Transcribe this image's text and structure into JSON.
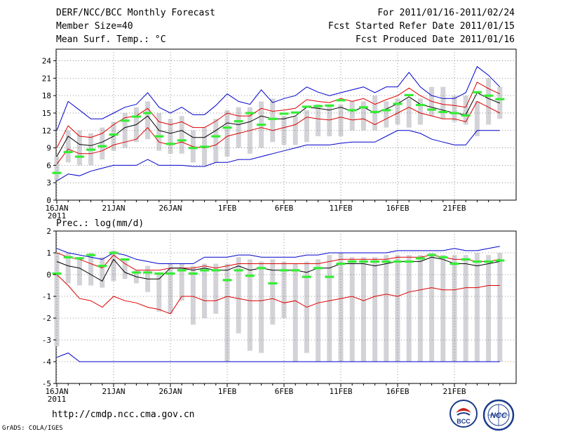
{
  "header": {
    "title": "DERF/NCC/BCC Monthly Forecast",
    "member_size": "Member Size=40",
    "variable": "Mean Surf. Temp.: °C",
    "period": "For 2011/01/16-2011/02/24",
    "start_date": "Fcst Started Refer Date 2011/01/15",
    "produced_date": "Fcst Produced Date 2011/01/16"
  },
  "footer": {
    "url": "http://cmdp.ncc.cma.gov.cn",
    "credit": "GrADS: COLA/IGES"
  },
  "logos": {
    "bcc": "BCC",
    "ncc": "NCC"
  },
  "colors": {
    "box": "#d3d3d7",
    "bar": "#33ee33",
    "mean": "#000000",
    "spread": "#dd0000",
    "envelope": "#0000cc"
  },
  "chart_data": [
    {
      "type": "line",
      "title": "Mean Surf. Temp.: °C",
      "ylim": [
        0,
        26
      ],
      "yticks": [
        0,
        3,
        6,
        9,
        12,
        15,
        18,
        21,
        24
      ],
      "xtick_labels": [
        "16JAN",
        "21JAN",
        "26JAN",
        "1FEB",
        "6FEB",
        "11FEB",
        "16FEB",
        "21FEB"
      ],
      "xtick_sublabel": "2011",
      "days": 40,
      "box_low": [
        3.5,
        6.5,
        6.0,
        6.0,
        7.0,
        8.5,
        9.0,
        10.0,
        10.5,
        8.5,
        8.0,
        8.0,
        6.5,
        6.0,
        6.5,
        7.5,
        9.0,
        8.0,
        9.0,
        10.0,
        9.5,
        9.5,
        10.0,
        11.0,
        11.0,
        11.0,
        12.0,
        12.0,
        12.0,
        12.5,
        13.0,
        12.5,
        13.0,
        14.5,
        14.0,
        13.5,
        13.0,
        11.0,
        13.0,
        14.0
      ],
      "box_high": [
        7.5,
        12.0,
        12.0,
        11.5,
        12.5,
        13.5,
        15.0,
        16.0,
        17.0,
        15.0,
        14.0,
        14.5,
        12.0,
        12.5,
        14.0,
        15.5,
        16.0,
        16.0,
        17.0,
        17.5,
        14.5,
        14.5,
        15.5,
        16.5,
        16.5,
        16.5,
        17.0,
        17.0,
        18.0,
        17.0,
        17.5,
        17.5,
        17.5,
        19.5,
        19.5,
        18.0,
        18.0,
        17.0,
        21.0,
        19.5
      ],
      "member_bar": [
        4.7,
        8.3,
        7.5,
        8.7,
        9.3,
        11.3,
        13.7,
        14.4,
        15.0,
        11.0,
        9.7,
        10.3,
        9.0,
        9.2,
        11.0,
        12.5,
        13.6,
        15.0,
        13.0,
        14.0,
        14.9,
        15.1,
        16.1,
        16.2,
        16.3,
        17.2,
        15.5,
        16.0,
        15.2,
        15.5,
        16.6,
        18.1,
        16.4,
        15.6,
        15.2,
        15.0,
        14.6,
        18.6,
        18.0,
        17.4
      ],
      "series": [
        {
          "name": "max",
          "values": [
            12.0,
            17.0,
            15.5,
            14.0,
            14.0,
            15.0,
            16.0,
            16.5,
            18.5,
            16.0,
            15.0,
            16.0,
            14.7,
            14.7,
            16.3,
            18.3,
            17.0,
            16.5,
            19.0,
            16.8,
            17.5,
            18.0,
            19.5,
            18.6,
            18.0,
            18.5,
            19.0,
            19.5,
            18.5,
            19.5,
            19.5,
            22.0,
            19.5,
            18.0,
            17.5,
            17.5,
            18.5,
            23.0,
            21.5,
            19.5
          ]
        },
        {
          "name": "upper",
          "values": [
            9.0,
            12.8,
            11.0,
            10.8,
            11.5,
            13.0,
            14.2,
            14.5,
            15.8,
            13.5,
            13.0,
            13.5,
            12.5,
            12.5,
            13.6,
            15.0,
            14.5,
            14.5,
            15.8,
            15.3,
            15.5,
            15.8,
            17.3,
            17.0,
            16.8,
            17.5,
            17.0,
            17.5,
            16.5,
            17.3,
            18.0,
            19.3,
            18.0,
            17.0,
            16.5,
            16.3,
            16.0,
            20.3,
            19.2,
            18.3
          ]
        },
        {
          "name": "mean",
          "values": [
            7.5,
            11.0,
            9.6,
            9.4,
            10.0,
            11.0,
            12.5,
            13.0,
            14.5,
            12.0,
            11.5,
            12.0,
            10.8,
            10.8,
            12.0,
            13.3,
            13.0,
            13.5,
            14.5,
            14.0,
            14.0,
            14.5,
            16.0,
            15.8,
            15.5,
            16.0,
            15.3,
            16.0,
            15.0,
            15.7,
            16.6,
            17.8,
            16.5,
            16.0,
            15.5,
            15.0,
            14.7,
            18.5,
            17.5,
            16.7
          ]
        },
        {
          "name": "lower",
          "values": [
            6.2,
            8.8,
            8.0,
            8.0,
            8.5,
            9.5,
            10.0,
            10.5,
            12.5,
            10.0,
            9.5,
            10.0,
            9.2,
            9.0,
            9.5,
            11.0,
            11.5,
            12.0,
            12.5,
            12.0,
            12.5,
            13.0,
            14.3,
            14.0,
            13.8,
            14.3,
            13.8,
            14.0,
            13.0,
            14.0,
            15.0,
            16.0,
            15.0,
            14.5,
            14.0,
            14.0,
            13.5,
            17.0,
            16.0,
            15.0
          ]
        },
        {
          "name": "min",
          "values": [
            3.3,
            4.5,
            4.2,
            5.0,
            5.5,
            6.0,
            6.0,
            6.0,
            7.0,
            6.0,
            6.0,
            6.0,
            5.8,
            5.8,
            6.5,
            6.5,
            7.0,
            7.0,
            7.5,
            8.0,
            8.5,
            9.0,
            9.5,
            9.5,
            9.5,
            9.8,
            10.0,
            10.0,
            10.0,
            11.0,
            12.0,
            12.0,
            11.5,
            10.5,
            10.0,
            9.5,
            9.5,
            12.0,
            12.0,
            12.0
          ]
        }
      ]
    },
    {
      "type": "line",
      "title": "Prec.: log(mm/d)",
      "ylim": [
        -5,
        2
      ],
      "yticks": [
        -5,
        -4,
        -3,
        -2,
        -1,
        0,
        1,
        2
      ],
      "xtick_labels": [
        "16JAN",
        "21JAN",
        "26JAN",
        "1FEB",
        "6FEB",
        "11FEB",
        "16FEB",
        "21FEB"
      ],
      "xtick_sublabel": "2011",
      "days": 40,
      "box_low": [
        -3.3,
        -0.4,
        -0.5,
        -0.5,
        -0.6,
        -0.3,
        -0.2,
        -0.4,
        -0.8,
        -1.7,
        -1.8,
        -1.2,
        -2.3,
        -2.0,
        -1.8,
        -4.0,
        -2.7,
        -3.5,
        -3.6,
        -2.3,
        -2.0,
        -4.0,
        -3.6,
        -4.0,
        -4.0,
        -4.0,
        -4.0,
        -4.0,
        -4.0,
        -4.0,
        -4.0,
        -4.0,
        -4.0,
        -4.0,
        -4.0,
        -4.0,
        -4.0,
        -4.0,
        -4.0,
        -4.0
      ],
      "box_high": [
        1.0,
        1.0,
        0.8,
        1.0,
        0.8,
        1.1,
        0.7,
        0.2,
        0.4,
        0.0,
        0.5,
        0.5,
        0.4,
        0.5,
        0.5,
        0.5,
        0.8,
        0.7,
        0.6,
        0.7,
        0.6,
        0.5,
        0.6,
        0.7,
        0.9,
        1.0,
        0.8,
        0.8,
        0.8,
        0.9,
        0.9,
        0.9,
        0.9,
        1.0,
        0.9,
        0.9,
        0.9,
        1.0,
        0.9,
        1.0
      ],
      "member_bar": [
        0.05,
        0.8,
        0.75,
        0.9,
        0.4,
        1.0,
        0.7,
        0.1,
        0.1,
        0.05,
        0.05,
        0.2,
        0.05,
        0.2,
        0.2,
        -0.25,
        0.2,
        -0.05,
        0.3,
        -0.4,
        0.2,
        0.2,
        -0.1,
        0.3,
        -0.1,
        0.5,
        0.6,
        0.6,
        0.6,
        0.6,
        0.6,
        0.6,
        0.75,
        0.9,
        0.8,
        0.5,
        0.7,
        0.6,
        0.6,
        0.65
      ],
      "series": [
        {
          "name": "max",
          "values": [
            1.2,
            1.0,
            0.9,
            0.8,
            0.7,
            1.0,
            0.9,
            0.7,
            0.6,
            0.5,
            0.5,
            0.5,
            0.5,
            0.8,
            0.8,
            0.8,
            0.9,
            0.9,
            0.8,
            0.8,
            0.8,
            0.8,
            0.9,
            0.9,
            1.0,
            1.0,
            1.0,
            1.0,
            1.0,
            1.0,
            1.1,
            1.1,
            1.1,
            1.1,
            1.1,
            1.2,
            1.1,
            1.1,
            1.2,
            1.3
          ]
        },
        {
          "name": "upper",
          "values": [
            1.0,
            0.8,
            0.7,
            0.5,
            0.3,
            0.9,
            0.5,
            0.2,
            0.2,
            0.2,
            0.3,
            0.3,
            0.3,
            0.4,
            0.3,
            0.4,
            0.5,
            0.5,
            0.5,
            0.5,
            0.5,
            0.5,
            0.5,
            0.5,
            0.6,
            0.7,
            0.7,
            0.7,
            0.7,
            0.7,
            0.8,
            0.8,
            0.8,
            0.9,
            0.8,
            0.7,
            0.7,
            0.6,
            0.6,
            0.7
          ]
        },
        {
          "name": "mean",
          "values": [
            0.6,
            0.4,
            0.3,
            0.0,
            -0.3,
            0.7,
            0.1,
            -0.1,
            -0.2,
            -0.2,
            0.3,
            0.3,
            0.2,
            0.3,
            0.2,
            0.2,
            0.4,
            0.2,
            0.3,
            0.2,
            0.2,
            0.2,
            0.1,
            0.3,
            0.3,
            0.5,
            0.5,
            0.5,
            0.4,
            0.5,
            0.6,
            0.6,
            0.6,
            0.8,
            0.7,
            0.5,
            0.5,
            0.4,
            0.5,
            0.6
          ]
        },
        {
          "name": "lower",
          "values": [
            0.0,
            -0.5,
            -1.1,
            -1.2,
            -1.5,
            -1.0,
            -1.2,
            -1.3,
            -1.5,
            -1.6,
            -1.8,
            -1.0,
            -1.0,
            -1.2,
            -1.2,
            -1.0,
            -1.1,
            -1.2,
            -1.2,
            -1.1,
            -1.3,
            -1.2,
            -1.5,
            -1.3,
            -1.2,
            -1.1,
            -1.0,
            -1.2,
            -1.0,
            -0.9,
            -1.0,
            -0.8,
            -0.7,
            -0.6,
            -0.7,
            -0.7,
            -0.6,
            -0.6,
            -0.5,
            -0.5
          ]
        },
        {
          "name": "min",
          "values": [
            -3.8,
            -3.6,
            -4.0,
            -4.0,
            -4.0,
            -4.0,
            -4.0,
            -4.0,
            -4.0,
            -4.0,
            -4.0,
            -4.0,
            -4.0,
            -4.0,
            -4.0,
            -4.0,
            -4.0,
            -4.0,
            -4.0,
            -4.0,
            -4.0,
            -4.0,
            -4.0,
            -4.0,
            -4.0,
            -4.0,
            -4.0,
            -4.0,
            -4.0,
            -4.0,
            -4.0,
            -4.0,
            -4.0,
            -4.0,
            -4.0,
            -4.0,
            -4.0,
            -4.0,
            -4.0,
            -4.0
          ]
        }
      ]
    }
  ]
}
